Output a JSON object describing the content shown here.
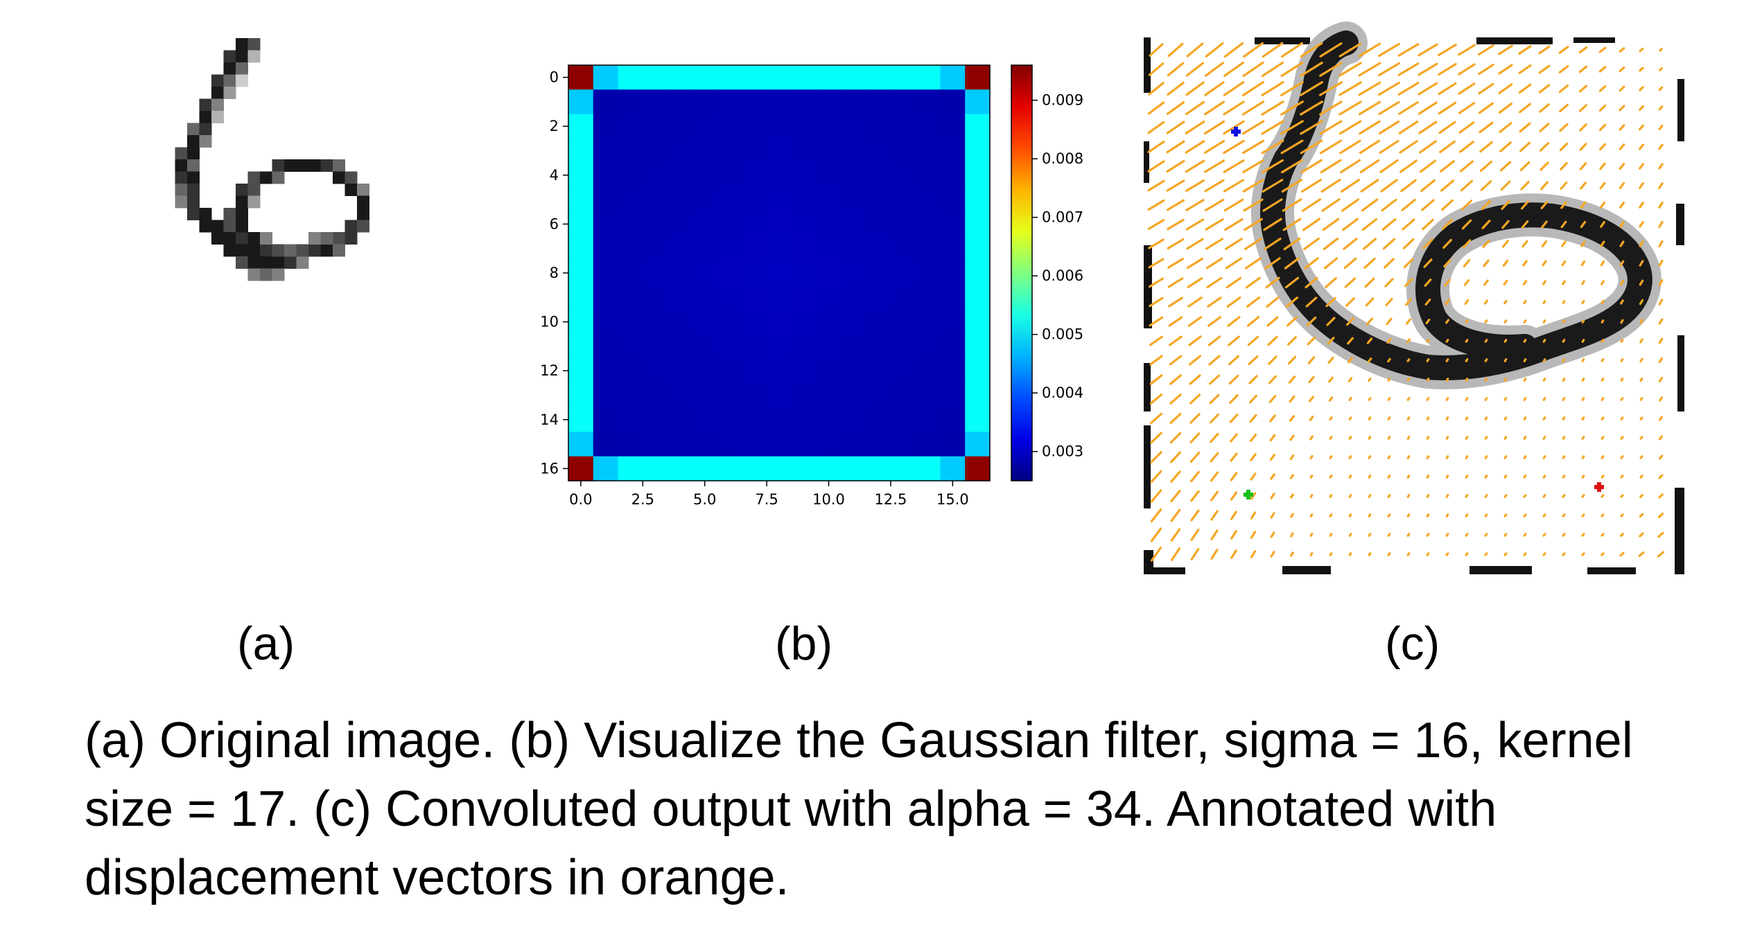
{
  "figure": {
    "subfigures": [
      {
        "label": "(a)"
      },
      {
        "label": "(b)"
      },
      {
        "label": "(c)"
      }
    ],
    "caption": "(a) Original image. (b) Visualize the Gaussian filter, sigma = 16, kernel size = 17. (c) Convoluted output with alpha = 34. Annotated with displacement vectors in orange."
  },
  "chart_data": {
    "type": "heatmap",
    "grid_size": [
      17,
      17
    ],
    "x_ticks": [
      "0.0",
      "2.5",
      "5.0",
      "7.5",
      "10.0",
      "12.5",
      "15.0"
    ],
    "x_tick_values": [
      0,
      2.5,
      5,
      7.5,
      10,
      12.5,
      15
    ],
    "y_ticks": [
      "0",
      "2",
      "4",
      "6",
      "8",
      "10",
      "12",
      "14",
      "16"
    ],
    "y_tick_values": [
      0,
      2,
      4,
      6,
      8,
      10,
      12,
      14,
      16
    ],
    "colorbar_ticks": [
      "0.009",
      "0.008",
      "0.007",
      "0.006",
      "0.005",
      "0.004",
      "0.003"
    ],
    "colorbar_tick_values": [
      0.009,
      0.008,
      0.007,
      0.006,
      0.005,
      0.004,
      0.003
    ],
    "colorbar_range": [
      0.0025,
      0.0096
    ],
    "colormap": "jet",
    "corner_value": 0.0095,
    "edge_value_near_corner": 0.0048,
    "edge_value_mid": 0.0052,
    "interior_value": 0.0028,
    "interior_center_value": 0.00295
  }
}
